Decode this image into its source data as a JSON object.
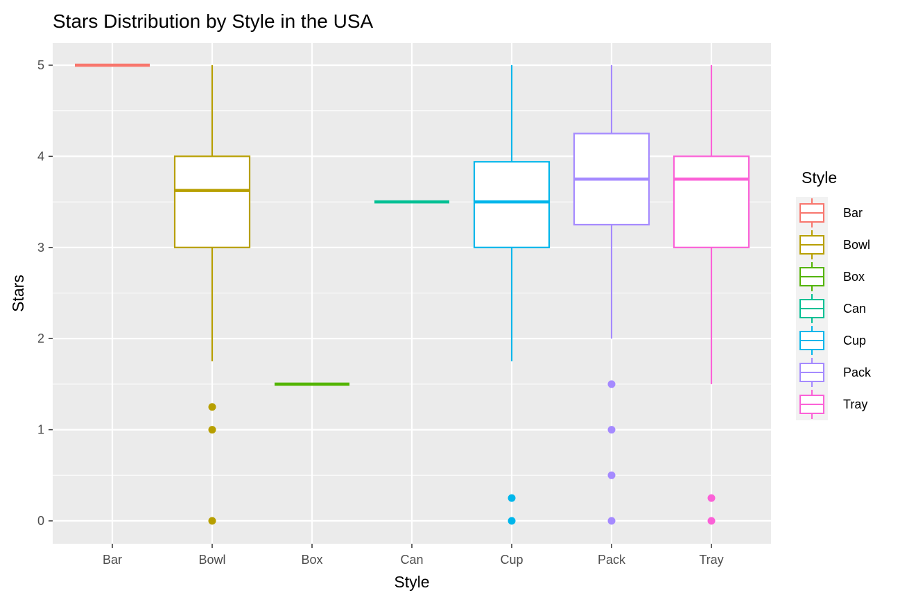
{
  "chart_data": {
    "type": "boxplot",
    "title": "Stars Distribution by Style in the USA",
    "xlabel": "Style",
    "ylabel": "Stars",
    "ylim": [
      -0.25,
      5.25
    ],
    "yticks": [
      0,
      1,
      2,
      3,
      4,
      5
    ],
    "grid": true,
    "legend": {
      "title": "Style",
      "placement": "right"
    },
    "categories": [
      "Bar",
      "Bowl",
      "Box",
      "Can",
      "Cup",
      "Pack",
      "Tray"
    ],
    "series": [
      {
        "name": "Bar",
        "color": "#F8766D",
        "min": 5.0,
        "q1": 5.0,
        "median": 5.0,
        "q3": 5.0,
        "max": 5.0,
        "outliers": []
      },
      {
        "name": "Bowl",
        "color": "#B79F00",
        "min": 1.75,
        "q1": 3.0,
        "median": 3.625,
        "q3": 4.0,
        "max": 5.0,
        "outliers": [
          1.25,
          1.0,
          0.0
        ]
      },
      {
        "name": "Box",
        "color": "#53B400",
        "min": 1.5,
        "q1": 1.5,
        "median": 1.5,
        "q3": 1.5,
        "max": 1.5,
        "outliers": []
      },
      {
        "name": "Can",
        "color": "#00C094",
        "min": 3.5,
        "q1": 3.5,
        "median": 3.5,
        "q3": 3.5,
        "max": 3.5,
        "outliers": []
      },
      {
        "name": "Cup",
        "color": "#00B6EB",
        "min": 1.75,
        "q1": 3.0,
        "median": 3.5,
        "q3": 3.94,
        "max": 5.0,
        "outliers": [
          0.25,
          0.0
        ]
      },
      {
        "name": "Pack",
        "color": "#A58AFF",
        "min": 2.0,
        "q1": 3.25,
        "median": 3.75,
        "q3": 4.25,
        "max": 5.0,
        "outliers": [
          1.5,
          1.0,
          0.5,
          0.0
        ]
      },
      {
        "name": "Tray",
        "color": "#FB61D7",
        "min": 1.5,
        "q1": 3.0,
        "median": 3.75,
        "q3": 4.0,
        "max": 5.0,
        "outliers": [
          0.25,
          0.0
        ]
      }
    ]
  }
}
